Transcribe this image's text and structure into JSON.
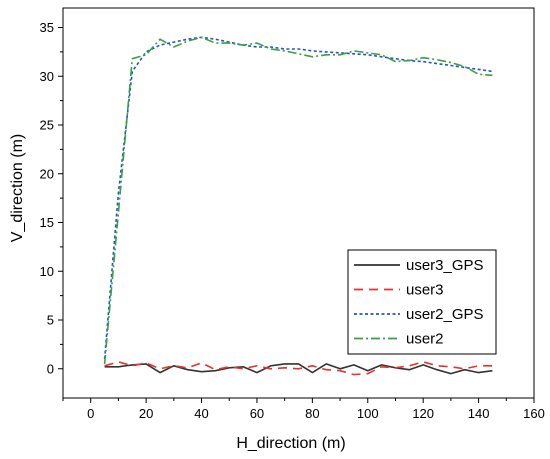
{
  "chart_data": {
    "type": "line",
    "xlabel": "H_direction (m)",
    "ylabel": "V_direction (m)",
    "xlim": [
      -10,
      160
    ],
    "ylim": [
      -3,
      37
    ],
    "xticks": [
      0,
      20,
      40,
      60,
      80,
      100,
      120,
      140,
      160
    ],
    "yticks": [
      0,
      5,
      10,
      15,
      20,
      25,
      30,
      35
    ],
    "grid": false,
    "legend_position": "bottom-right",
    "series": [
      {
        "name": "user3_GPS",
        "color": "#333333",
        "dash": "solid",
        "x": [
          5,
          10,
          15,
          20,
          25,
          30,
          35,
          40,
          45,
          50,
          55,
          60,
          65,
          70,
          75,
          80,
          85,
          90,
          95,
          100,
          105,
          110,
          115,
          120,
          125,
          130,
          135,
          140,
          145
        ],
        "y": [
          0.2,
          0.2,
          0.4,
          0.5,
          -0.4,
          0.3,
          -0.1,
          -0.3,
          -0.2,
          0.1,
          0.2,
          -0.4,
          0.3,
          0.5,
          0.5,
          -0.4,
          0.5,
          0.0,
          0.4,
          -0.2,
          0.4,
          0.1,
          -0.1,
          0.4,
          -0.1,
          -0.5,
          -0.1,
          -0.4,
          -0.2
        ]
      },
      {
        "name": "user3",
        "color": "#e8322a",
        "dash": "long-dash",
        "x": [
          5,
          10,
          15,
          20,
          25,
          30,
          35,
          40,
          45,
          50,
          55,
          60,
          65,
          70,
          75,
          80,
          85,
          90,
          95,
          100,
          105,
          110,
          115,
          120,
          125,
          130,
          135,
          140,
          145
        ],
        "y": [
          0.3,
          0.7,
          0.3,
          0.6,
          0.0,
          0.3,
          0.1,
          0.6,
          -0.1,
          0.2,
          0.0,
          0.3,
          0.0,
          0.1,
          0.0,
          0.3,
          -0.1,
          -0.2,
          -0.6,
          -0.5,
          0.2,
          0.1,
          0.3,
          0.7,
          0.3,
          0.2,
          0.0,
          0.3,
          0.3
        ]
      },
      {
        "name": "user2_GPS",
        "color": "#2155c7",
        "dash": "dot",
        "x": [
          5,
          10,
          15,
          20,
          25,
          30,
          35,
          40,
          45,
          50,
          55,
          60,
          65,
          70,
          75,
          80,
          85,
          90,
          95,
          100,
          105,
          110,
          115,
          120,
          125,
          130,
          135,
          140,
          145
        ],
        "y": [
          1.0,
          18.0,
          30.5,
          32.5,
          33.2,
          33.5,
          33.8,
          34.0,
          33.8,
          33.5,
          33.2,
          33.0,
          33.0,
          32.8,
          32.8,
          32.6,
          32.5,
          32.4,
          32.3,
          32.2,
          32.0,
          31.8,
          31.6,
          31.5,
          31.3,
          31.1,
          30.9,
          30.7,
          30.5
        ]
      },
      {
        "name": "user2",
        "color": "#3aa040",
        "dash": "dash-dot",
        "x": [
          5,
          10,
          15,
          20,
          25,
          30,
          35,
          40,
          45,
          50,
          55,
          60,
          65,
          70,
          75,
          80,
          85,
          90,
          95,
          100,
          105,
          110,
          115,
          120,
          125,
          130,
          135,
          140,
          145
        ],
        "y": [
          0.5,
          16.0,
          31.8,
          32.2,
          33.8,
          33.0,
          33.6,
          34.0,
          33.4,
          33.4,
          33.2,
          33.4,
          32.8,
          32.6,
          32.3,
          32.0,
          32.2,
          32.2,
          32.6,
          32.4,
          32.2,
          31.5,
          31.6,
          31.9,
          31.7,
          31.4,
          31.0,
          30.2,
          30.1
        ]
      }
    ]
  }
}
